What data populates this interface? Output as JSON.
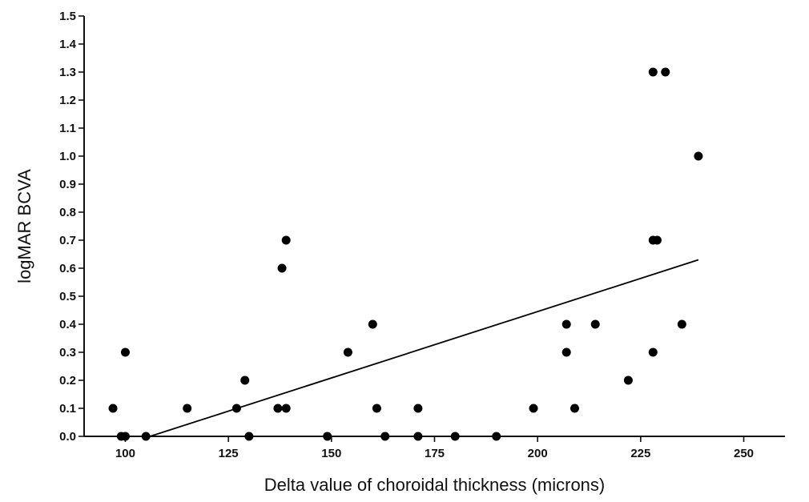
{
  "chart_data": {
    "type": "scatter",
    "title": "",
    "xlabel": "Delta value of choroidal thickness (microns)",
    "ylabel": "logMAR BCVA",
    "xlim": [
      90,
      260
    ],
    "ylim": [
      0,
      1.5
    ],
    "x_ticks": [
      100,
      125,
      150,
      175,
      200,
      225,
      250
    ],
    "y_ticks": [
      0.0,
      0.1,
      0.2,
      0.3,
      0.4,
      0.5,
      0.6,
      0.7,
      0.8,
      0.9,
      1.0,
      1.1,
      1.2,
      1.3,
      1.4,
      1.5
    ],
    "grid": false,
    "legend": "none",
    "series": [
      {
        "points": [
          [
            97,
            0.1
          ],
          [
            99,
            0.0
          ],
          [
            100,
            0.0
          ],
          [
            100,
            0.3
          ],
          [
            105,
            0.0
          ],
          [
            115,
            0.1
          ],
          [
            127,
            0.1
          ],
          [
            129,
            0.2
          ],
          [
            130,
            0.0
          ],
          [
            137,
            0.1
          ],
          [
            138,
            0.6
          ],
          [
            139,
            0.7
          ],
          [
            139,
            0.1
          ],
          [
            149,
            0.0
          ],
          [
            154,
            0.3
          ],
          [
            160,
            0.4
          ],
          [
            161,
            0.1
          ],
          [
            163,
            0.0
          ],
          [
            171,
            0.1
          ],
          [
            171,
            0.0
          ],
          [
            180,
            0.0
          ],
          [
            190,
            0.0
          ],
          [
            199,
            0.1
          ],
          [
            207,
            0.4
          ],
          [
            207,
            0.3
          ],
          [
            209,
            0.1
          ],
          [
            214,
            0.4
          ],
          [
            222,
            0.2
          ],
          [
            228,
            1.3
          ],
          [
            228,
            0.7
          ],
          [
            229,
            0.7
          ],
          [
            228,
            0.3
          ],
          [
            231,
            1.3
          ],
          [
            235,
            0.4
          ],
          [
            239,
            1.0
          ]
        ]
      }
    ],
    "trendline": {
      "x": [
        106,
        239
      ],
      "y": [
        0.0,
        0.63
      ]
    }
  }
}
